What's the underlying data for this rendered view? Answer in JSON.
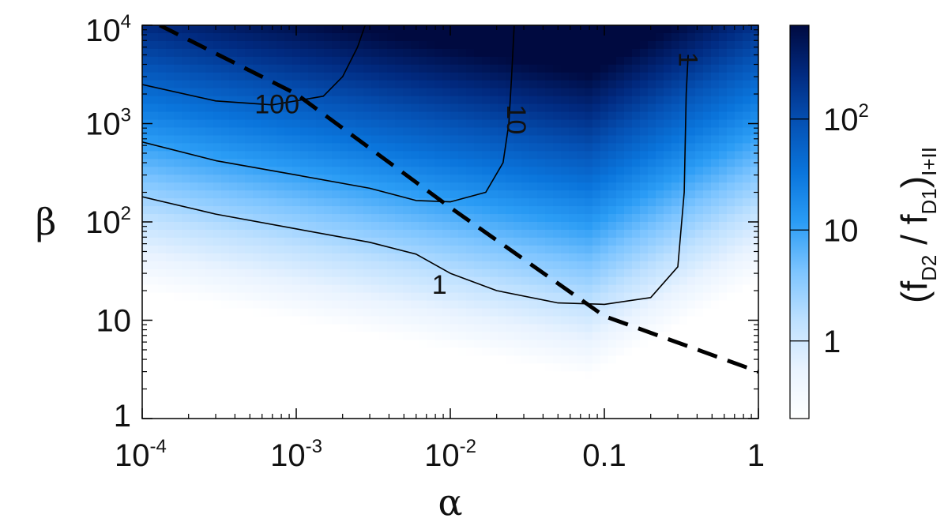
{
  "chart_data": {
    "type": "heatmap",
    "title": "",
    "xlabel": "α",
    "ylabel": "β",
    "x_scale": "log",
    "y_scale": "log",
    "xlim": [
      0.0001,
      1
    ],
    "ylim": [
      1,
      10000
    ],
    "x_ticks": [
      {
        "value": 0.0001,
        "base": "10",
        "exp": "-4"
      },
      {
        "value": 0.001,
        "base": "10",
        "exp": "-3"
      },
      {
        "value": 0.01,
        "base": "10",
        "exp": "-2"
      },
      {
        "value": 0.1,
        "base": "0.1",
        "exp": ""
      },
      {
        "value": 1,
        "base": "1",
        "exp": ""
      }
    ],
    "y_ticks": [
      {
        "value": 1,
        "base": "1",
        "exp": ""
      },
      {
        "value": 10,
        "base": "10",
        "exp": ""
      },
      {
        "value": 100,
        "base": "10",
        "exp": "2"
      },
      {
        "value": 1000,
        "base": "10",
        "exp": "3"
      },
      {
        "value": 10000,
        "base": "10",
        "exp": "4"
      }
    ],
    "colorbar": {
      "label_parts": [
        "(f",
        "D2",
        " / f",
        "D1",
        ")",
        "I+II"
      ],
      "scale": "log",
      "range": [
        0.2,
        700
      ],
      "ticks": [
        {
          "value": 1,
          "base": "1",
          "exp": ""
        },
        {
          "value": 10,
          "base": "10",
          "exp": ""
        },
        {
          "value": 100,
          "base": "10",
          "exp": "2"
        }
      ],
      "colors": [
        "#ffffff",
        "#e9f3ff",
        "#bde0ff",
        "#7cc4ff",
        "#2a9cf5",
        "#0a75dc",
        "#0552b5",
        "#012a80",
        "#000a40"
      ]
    },
    "contours": [
      {
        "level_label": "1",
        "points": [
          [
            0.0001,
            180
          ],
          [
            0.0003,
            120
          ],
          [
            0.001,
            85
          ],
          [
            0.003,
            62
          ],
          [
            0.006,
            47
          ],
          [
            0.01,
            30
          ],
          [
            0.02,
            20
          ],
          [
            0.05,
            15
          ],
          [
            0.1,
            14.5
          ],
          [
            0.2,
            17
          ],
          [
            0.3,
            35
          ],
          [
            0.33,
            200
          ],
          [
            0.34,
            2000
          ],
          [
            0.35,
            5000
          ]
        ]
      },
      {
        "level_label": "10",
        "points": [
          [
            0.0001,
            650
          ],
          [
            0.0003,
            420
          ],
          [
            0.001,
            300
          ],
          [
            0.003,
            220
          ],
          [
            0.006,
            165
          ],
          [
            0.01,
            160
          ],
          [
            0.017,
            200
          ],
          [
            0.022,
            400
          ],
          [
            0.024,
            1000
          ],
          [
            0.025,
            3000
          ],
          [
            0.026,
            10000
          ]
        ]
      },
      {
        "level_label": "100",
        "points": [
          [
            0.0001,
            2500
          ],
          [
            0.0003,
            1700
          ],
          [
            0.0007,
            1550
          ],
          [
            0.0015,
            1900
          ],
          [
            0.002,
            3000
          ],
          [
            0.0025,
            6000
          ],
          [
            0.0028,
            10000
          ]
        ]
      }
    ],
    "dashed_line": {
      "points": [
        [
          0.00013,
          10000
        ],
        [
          0.001,
          2000
        ],
        [
          0.01,
          140
        ],
        [
          0.1,
          11
        ],
        [
          1,
          3
        ]
      ]
    },
    "contour_labels": [
      {
        "text": "100",
        "x": 0.00075,
        "y": 1500,
        "rotate": 0
      },
      {
        "text": "10",
        "x": 0.026,
        "y": 1100,
        "rotate": 90
      },
      {
        "text": "1",
        "x": 0.34,
        "y": 4500,
        "rotate": 90
      },
      {
        "text": "1",
        "x": 0.0085,
        "y": 22,
        "rotate": 0
      }
    ]
  }
}
